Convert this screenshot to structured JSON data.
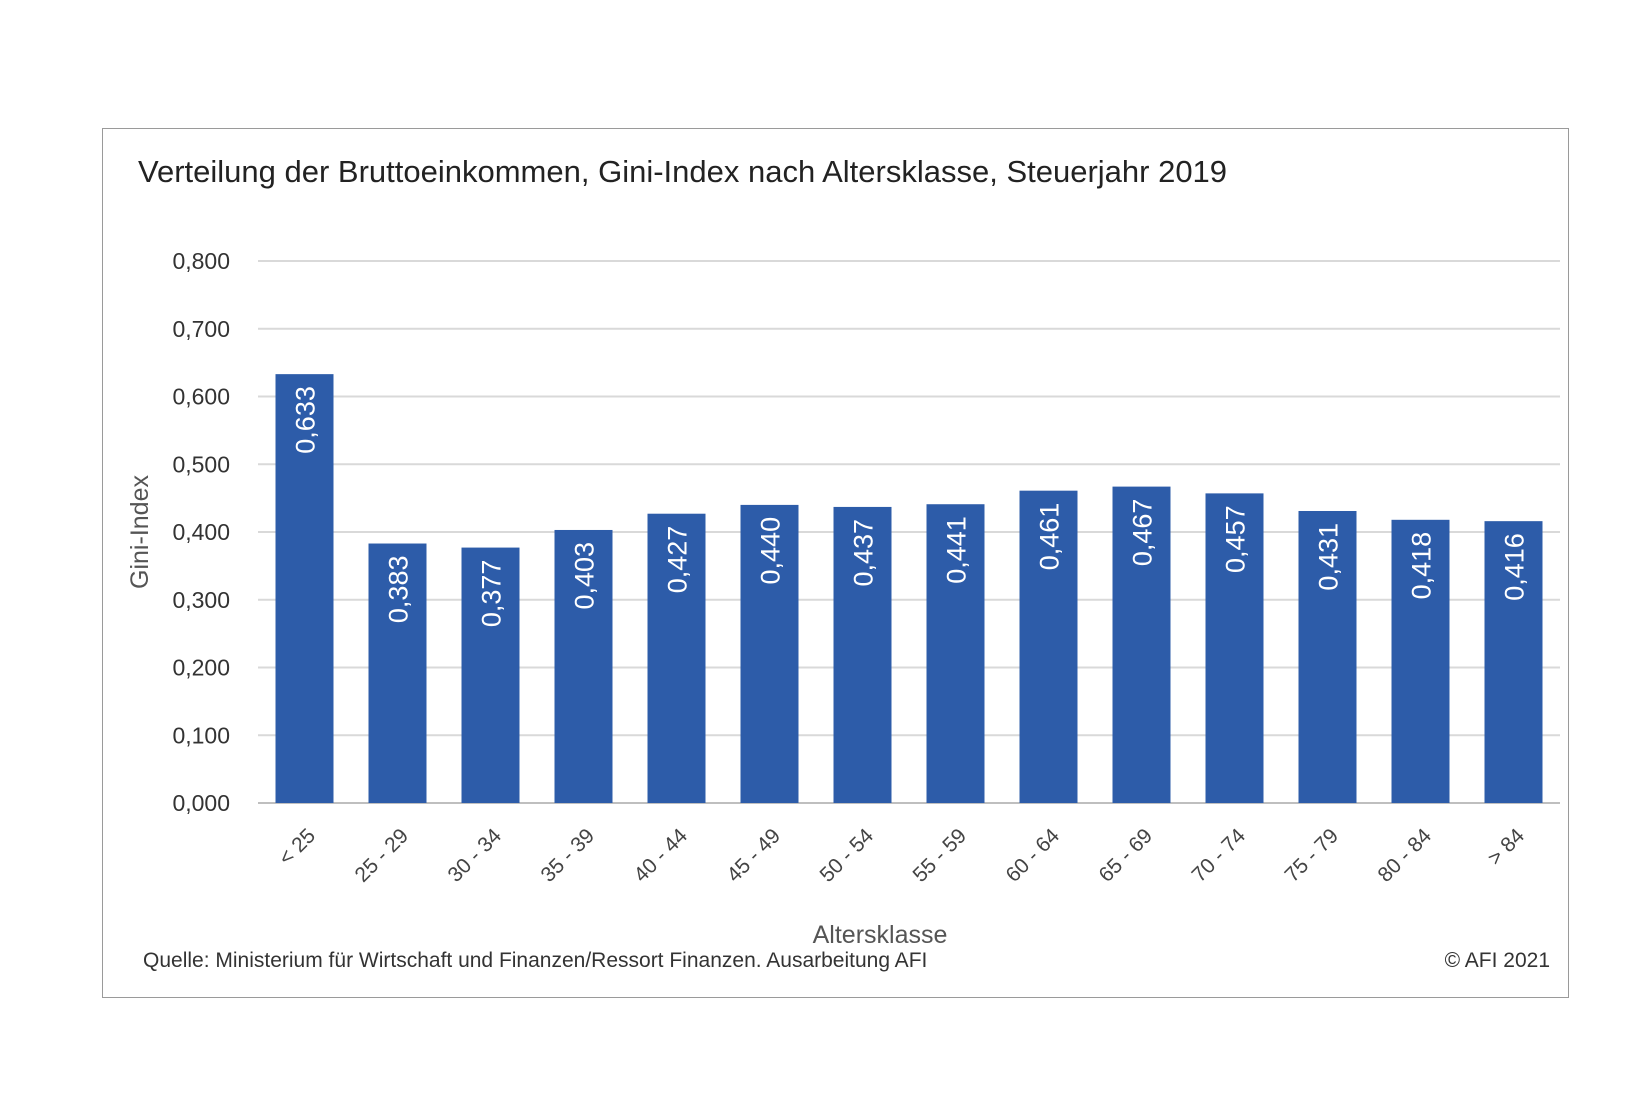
{
  "chart_data": {
    "type": "bar",
    "title": "Verteilung der Bruttoeinkommen, Gini-Index nach Altersklasse, Steuerjahr 2019",
    "xlabel": "Altersklasse",
    "ylabel": "Gini-Index",
    "ylim": [
      0,
      0.8
    ],
    "yticks": [
      "0,000",
      "0,100",
      "0,200",
      "0,300",
      "0,400",
      "0,500",
      "0,600",
      "0,700",
      "0,800"
    ],
    "categories": [
      "< 25",
      "25 - 29",
      "30 - 34",
      "35 - 39",
      "40 - 44",
      "45 - 49",
      "50 - 54",
      "55 - 59",
      "60 - 64",
      "65 - 69",
      "70 - 74",
      "75 - 79",
      "80 - 84",
      "> 84"
    ],
    "values": [
      0.633,
      0.383,
      0.377,
      0.403,
      0.427,
      0.44,
      0.437,
      0.441,
      0.461,
      0.467,
      0.457,
      0.431,
      0.418,
      0.416
    ],
    "value_labels": [
      "0,633",
      "0,383",
      "0,377",
      "0,403",
      "0,427",
      "0,440",
      "0,437",
      "0,441",
      "0,461",
      "0,467",
      "0,457",
      "0,431",
      "0,418",
      "0,416"
    ],
    "bar_color": "#2d5ca9",
    "grid": true,
    "legend": "none"
  },
  "footer": {
    "source": "Quelle: Ministerium für Wirtschaft und Finanzen/Ressort Finanzen. Ausarbeitung AFI",
    "copyright": "© AFI 2021"
  }
}
